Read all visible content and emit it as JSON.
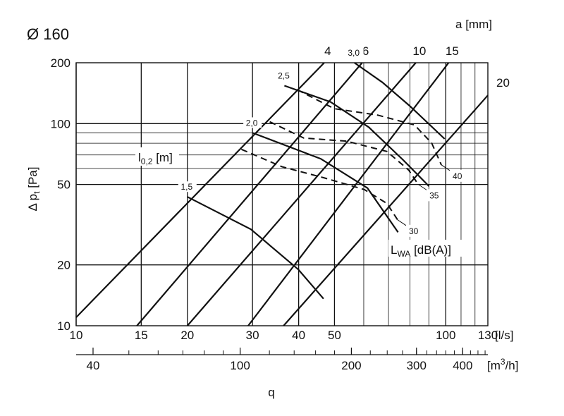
{
  "chart_data": {
    "type": "line",
    "title": "Ø 160",
    "xlabel": "q",
    "ylabel_prefix": "Δ p",
    "ylabel_sub": "t",
    "ylabel_suffix": " [Pa]",
    "xscale": "log",
    "yscale": "log",
    "xlim": [
      10,
      130
    ],
    "ylim": [
      10,
      200
    ],
    "grid": true,
    "x_ticks": [
      10,
      15,
      20,
      30,
      40,
      50,
      100,
      130
    ],
    "x_unit": "[l/s]",
    "x_ticks_m3h": [
      40,
      100,
      200,
      300,
      400
    ],
    "m3h_unit_prefix": "[m",
    "m3h_unit_sup": "3",
    "m3h_unit_suffix": "/h]",
    "y_ticks": [
      10,
      20,
      50,
      100,
      200
    ],
    "a_axis_label": "a [mm]",
    "a_lines": [
      {
        "label": "4",
        "points": [
          [
            10,
            11
          ],
          [
            46.9,
            200
          ]
        ]
      },
      {
        "label": "6",
        "points": [
          [
            14.6,
            10
          ],
          [
            59.4,
            200
          ]
        ]
      },
      {
        "label": "10",
        "points": [
          [
            20.0,
            10
          ],
          [
            83.0,
            200
          ]
        ]
      },
      {
        "label": "15",
        "points": [
          [
            29.2,
            10
          ],
          [
            101.8,
            200
          ]
        ]
      },
      {
        "label": "20",
        "points": [
          [
            36.4,
            10
          ],
          [
            130,
            138
          ]
        ]
      }
    ],
    "throw_label_prefix": "l",
    "throw_label_sub": "0,2",
    "throw_label_suffix": " [m]",
    "throw_curves": [
      {
        "label": "1,5",
        "points": [
          [
            20.0,
            43.4
          ],
          [
            29.7,
            30
          ],
          [
            39.9,
            19
          ],
          [
            46.7,
            13.6
          ]
        ]
      },
      {
        "label": "2,0",
        "points": [
          [
            30.0,
            90
          ],
          [
            45.9,
            67
          ],
          [
            61.4,
            48
          ],
          [
            74.3,
            29
          ]
        ]
      },
      {
        "label": "2,5",
        "points": [
          [
            36.6,
            154
          ],
          [
            48.8,
            128
          ],
          [
            61.9,
            96
          ],
          [
            76.7,
            66
          ],
          [
            90.1,
            49
          ]
        ]
      },
      {
        "label": "3,0",
        "points": [
          [
            56.6,
            200
          ],
          [
            67.4,
            160
          ],
          [
            80.0,
            122
          ],
          [
            99.3,
            84
          ]
        ]
      }
    ],
    "sound_label_prefix": "L",
    "sound_label_sub": "WA",
    "sound_label_suffix": " [dB(A)]",
    "sound_curves": [
      {
        "label": "30",
        "points": [
          [
            28.0,
            74.6
          ],
          [
            36.1,
            61.1
          ],
          [
            46.7,
            54
          ],
          [
            60.2,
            47.2
          ],
          [
            69.3,
            40.3
          ],
          [
            74.1,
            33.4
          ]
        ]
      },
      {
        "label": "35",
        "points": [
          [
            33.4,
            102.1
          ],
          [
            41.3,
            84.8
          ],
          [
            53.9,
            81.9
          ],
          [
            69.3,
            72.8
          ],
          [
            79.4,
            58.9
          ],
          [
            84.2,
            50.1
          ]
        ]
      },
      {
        "label": "40",
        "points": [
          [
            39.7,
            146.9
          ],
          [
            49.9,
            118.6
          ],
          [
            65.4,
            110.2
          ],
          [
            82.3,
            98.5
          ],
          [
            91.6,
            80.1
          ],
          [
            97.3,
            62.5
          ]
        ]
      }
    ]
  }
}
